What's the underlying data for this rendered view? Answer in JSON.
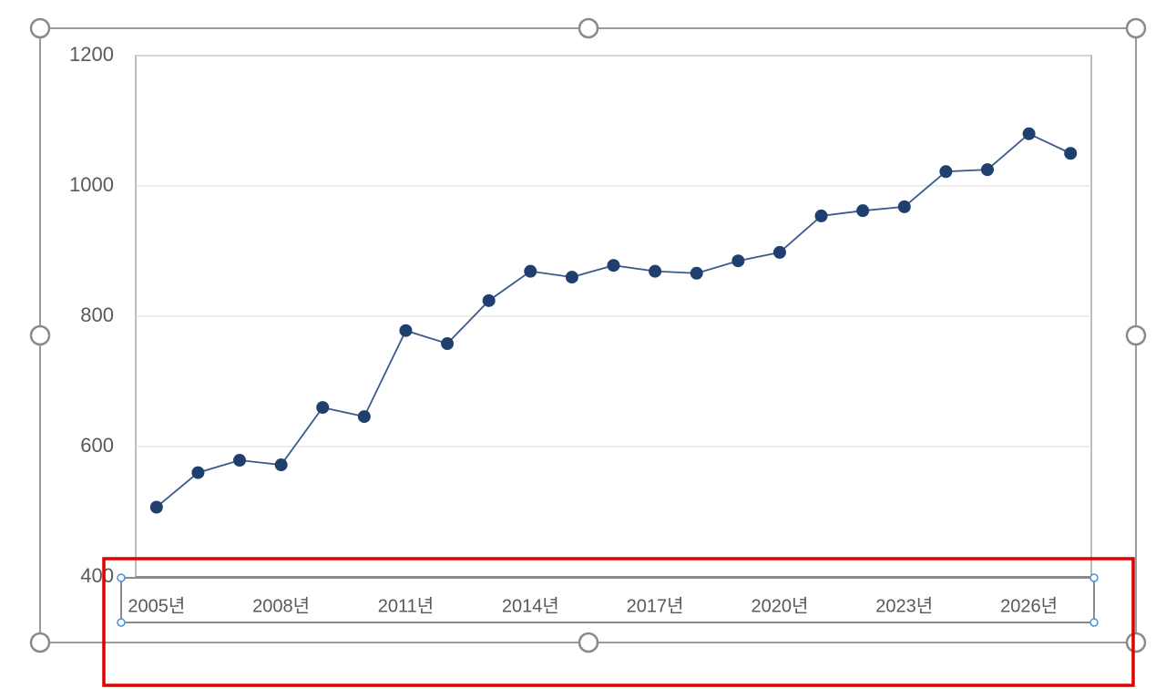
{
  "chart_data": {
    "type": "line",
    "categories": [
      "2005년",
      null,
      null,
      "2008년",
      null,
      null,
      "2011년",
      null,
      null,
      "2014년",
      null,
      null,
      "2017년",
      null,
      null,
      "2020년",
      null,
      null,
      "2023년",
      null,
      null,
      "2026년",
      null
    ],
    "values": [
      507,
      560,
      579,
      572,
      660,
      646,
      778,
      758,
      824,
      869,
      860,
      878,
      869,
      866,
      885,
      898,
      954,
      962,
      968,
      1022,
      1025,
      1080,
      1050
    ],
    "color": "#1f3f6f",
    "ylim": [
      400,
      1200
    ],
    "yticks": [
      400,
      600,
      800,
      1000,
      1200
    ],
    "grid": true
  }
}
